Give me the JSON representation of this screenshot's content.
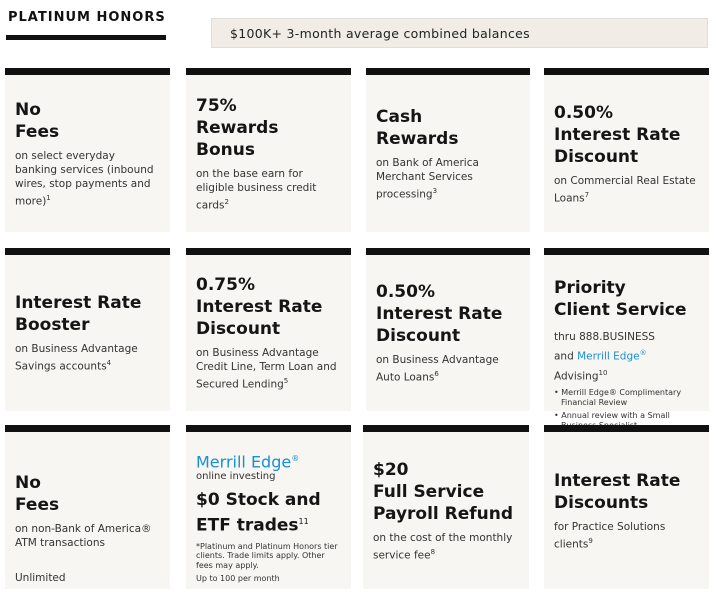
{
  "tier": {
    "title": "PLATINUM HONORS"
  },
  "banner": {
    "text": "$100K+ 3-month average combined balances"
  },
  "cards": [
    {
      "line1": "No",
      "line2": "Fees",
      "desc": "on select everyday banking services (inbound wires, stop payments and more)",
      "sup": "1"
    },
    {
      "line1": "75%",
      "line2": "Rewards Bonus",
      "desc": "on the base earn for eligible business credit cards",
      "sup": "2"
    },
    {
      "line1": "Cash",
      "line2": "Rewards",
      "desc": "on Bank of America Merchant Services processing",
      "sup": "3"
    },
    {
      "line0": "0.50%",
      "line1": "Interest Rate",
      "line2": "Discount",
      "desc": "on Commercial Real Estate Loans",
      "sup": "7"
    },
    {
      "line1": "Interest Rate",
      "line2": "Booster",
      "desc": "on Business Advantage Savings accounts",
      "sup": "4"
    },
    {
      "line0": "0.75%",
      "line1": "Interest Rate",
      "line2": "Discount",
      "desc": "on Business Advantage Credit Line, Term Loan and Secured Lending",
      "sup": "5"
    },
    {
      "line0": "0.50%",
      "line1": "Interest Rate",
      "line2": "Discount",
      "desc": "on Business Advantage Auto Loans",
      "sup": "6"
    },
    {
      "line1": "Priority",
      "line2": "Client Service",
      "desc1": "thru 888.BUSINESS",
      "desc2a": "and ",
      "desc2_brand": "Merrill Edge",
      "desc2_reg": "®",
      "desc2b": " Advising",
      "sup": "10",
      "bullet1": "• Merrill Edge® Complimentary Financial Review",
      "bullet2": "• Annual review with a Small Business Specialist"
    },
    {
      "line1": "No",
      "line2": "Fees",
      "desc": "on non-Bank of America® ATM transactions",
      "extra": "Unlimited"
    },
    {
      "brand": "Merrill Edge",
      "brand_reg": "®",
      "brand_sub": "online investing",
      "line1": "$0 Stock and",
      "line2": "ETF trades",
      "sup": "11",
      "fine": "*Platinum and Platinum Honors tier clients. Trade limits apply. Other fees may apply.",
      "limit": "Up to 100 per month"
    },
    {
      "line0": "$20",
      "line1": "Full Service",
      "line2": "Payroll Refund",
      "desc": "on the cost of the monthly service fee",
      "sup": "8"
    },
    {
      "line1": "Interest Rate",
      "line2": "Discounts",
      "desc": "for Practice Solutions clients",
      "sup": "9"
    }
  ]
}
